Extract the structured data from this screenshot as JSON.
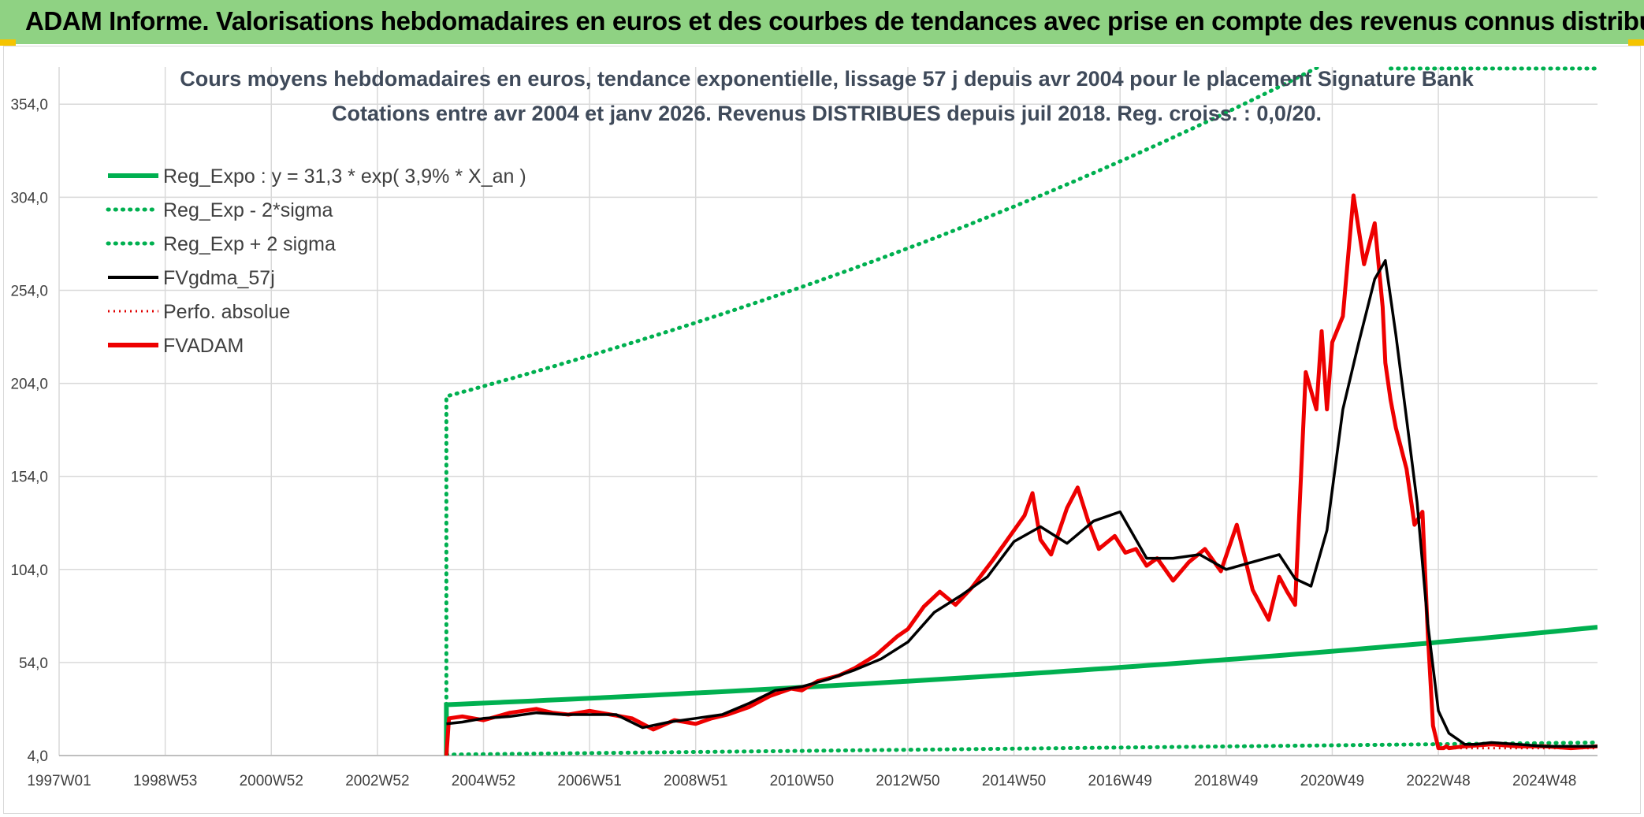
{
  "header": {
    "banner_title": "ADAM Informe. Valorisations hebdomadaires en euros et des courbes de tendances avec prise en compte des revenus connus distribués"
  },
  "colors": {
    "banner_bg": "#8fd283",
    "regression": "#00b050",
    "fvgdma": "#000000",
    "perfo": "#e00000",
    "fvadam": "#ee0000",
    "grid": "#d9d9d9",
    "corner": "#f5c400"
  },
  "chart_data": {
    "type": "line",
    "title_line1": "Cours moyens hebdomadaires en euros, tendance exponentielle, lissage 57 j depuis avr 2004 pour le placement Signature Bank",
    "title_line2": "Cotations entre avr 2004 et janv 2026. Revenus DISTRIBUES depuis juil 2018. Reg. croiss. : 0,0/20.",
    "ylim": [
      4,
      374
    ],
    "yticks": [
      4,
      54,
      104,
      154,
      204,
      254,
      304,
      354
    ],
    "ytick_labels": [
      "4,0",
      "54,0",
      "104,0",
      "154,0",
      "204,0",
      "254,0",
      "304,0",
      "354,0"
    ],
    "xlim": [
      1997.0,
      2026.0
    ],
    "xticks": [
      1997.0,
      1999.0,
      2001.0,
      2003.0,
      2005.0,
      2007.0,
      2009.0,
      2011.0,
      2013.0,
      2015.0,
      2017.0,
      2019.0,
      2021.0,
      2023.0,
      2025.0
    ],
    "xtick_labels": [
      "1997W01",
      "1998W53",
      "2000W52",
      "2002W52",
      "2004W52",
      "2006W51",
      "2008W51",
      "2010W50",
      "2012W50",
      "2014W50",
      "2016W49",
      "2018W49",
      "2020W49",
      "2022W48",
      "2024W48"
    ],
    "legend": [
      {
        "label": "Reg_Expo : y = 31,3 * exp( 3,9% *  X_an )",
        "style": "solid-thick",
        "color": "#00b050"
      },
      {
        "label": "Reg_Exp - 2*sigma",
        "style": "dotted",
        "color": "#00b050"
      },
      {
        "label": "Reg_Exp + 2 sigma",
        "style": "dotted",
        "color": "#00b050"
      },
      {
        "label": "FVgdma_57j",
        "style": "solid",
        "color": "#000000"
      },
      {
        "label": "Perfo. absolue",
        "style": "dotted",
        "color": "#e00000"
      },
      {
        "label": "FVADAM",
        "style": "solid-thick",
        "color": "#ee0000"
      }
    ],
    "series": [
      {
        "name": "Reg_Expo",
        "start": 2004.3,
        "end": 2026.0,
        "a": 31.3,
        "rate": 0.039
      },
      {
        "name": "Reg_Exp - 2*sigma",
        "start": 2004.3,
        "end": 2026.0,
        "x": [
          2004.3,
          2026.0
        ],
        "y": [
          4.5,
          11
        ]
      },
      {
        "name": "Reg_Exp + 2 sigma",
        "start": 2004.3,
        "end": 2026.0,
        "a": 197,
        "rate": 0.039
      },
      {
        "name": "FVgdma_57j",
        "x": [
          2004.3,
          2004.6,
          2005.0,
          2005.5,
          2006.0,
          2006.5,
          2007.0,
          2007.5,
          2008.0,
          2008.5,
          2009.0,
          2009.5,
          2010.0,
          2010.5,
          2011.0,
          2011.5,
          2012.0,
          2012.5,
          2013.0,
          2013.5,
          2014.0,
          2014.5,
          2015.0,
          2015.5,
          2016.0,
          2016.5,
          2017.0,
          2017.5,
          2018.0,
          2018.5,
          2019.0,
          2019.5,
          2020.0,
          2020.3,
          2020.6,
          2020.9,
          2021.2,
          2021.5,
          2021.8,
          2022.0,
          2022.2,
          2022.4,
          2022.6,
          2022.8,
          2023.0,
          2023.2,
          2023.35,
          2023.5,
          2023.7,
          2024.0,
          2024.5,
          2025.0,
          2025.5,
          2026.0
        ],
        "y": [
          21,
          22,
          24,
          25,
          27,
          26,
          26,
          26,
          19,
          22,
          24,
          26,
          32,
          39,
          41,
          45,
          50,
          56,
          65,
          81,
          90,
          100,
          119,
          127,
          118,
          130,
          135,
          110,
          110,
          112,
          104,
          108,
          112,
          99,
          95,
          125,
          190,
          226,
          260,
          270,
          230,
          185,
          140,
          75,
          28,
          16,
          13,
          10,
          10,
          11,
          10,
          9,
          9,
          9
        ]
      },
      {
        "name": "Perfo. absolue",
        "x": [
          2023.1,
          2026.0
        ],
        "y": [
          8,
          8
        ]
      },
      {
        "name": "FVADAM",
        "x": [
          2004.3,
          2004.35,
          2004.6,
          2005.0,
          2005.5,
          2006.0,
          2006.3,
          2006.6,
          2007.0,
          2007.4,
          2007.8,
          2008.2,
          2008.6,
          2009.0,
          2009.3,
          2009.6,
          2010.0,
          2010.4,
          2010.8,
          2011.0,
          2011.3,
          2011.7,
          2012.0,
          2012.4,
          2012.8,
          2013.0,
          2013.3,
          2013.6,
          2013.9,
          2014.2,
          2014.6,
          2015.0,
          2015.2,
          2015.35,
          2015.5,
          2015.7,
          2016.0,
          2016.2,
          2016.4,
          2016.6,
          2016.9,
          2017.1,
          2017.3,
          2017.5,
          2017.7,
          2018.0,
          2018.3,
          2018.6,
          2018.9,
          2019.2,
          2019.5,
          2019.8,
          2020.0,
          2020.15,
          2020.3,
          2020.5,
          2020.7,
          2020.8,
          2020.9,
          2021.0,
          2021.2,
          2021.4,
          2021.6,
          2021.8,
          2021.95,
          2022.0,
          2022.1,
          2022.2,
          2022.4,
          2022.55,
          2022.7,
          2022.8,
          2022.9,
          2023.0,
          2023.1,
          2023.15,
          2023.2,
          2023.5,
          2024.0,
          2024.5,
          2025.0,
          2025.5,
          2026.0
        ],
        "y": [
          4,
          24,
          25,
          23,
          27,
          29,
          27,
          26,
          28,
          26,
          24,
          18,
          23,
          21,
          24,
          26,
          30,
          36,
          40,
          39,
          44,
          47,
          51,
          58,
          68,
          72,
          84,
          92,
          85,
          94,
          109,
          125,
          133,
          145,
          120,
          112,
          137,
          148,
          130,
          115,
          122,
          113,
          115,
          106,
          110,
          98,
          108,
          115,
          103,
          128,
          93,
          77,
          100,
          92,
          85,
          210,
          190,
          232,
          190,
          226,
          240,
          305,
          268,
          290,
          245,
          215,
          195,
          180,
          158,
          128,
          135,
          70,
          20,
          8,
          8,
          9,
          8,
          9,
          10,
          9,
          9,
          8,
          9
        ]
      }
    ]
  }
}
